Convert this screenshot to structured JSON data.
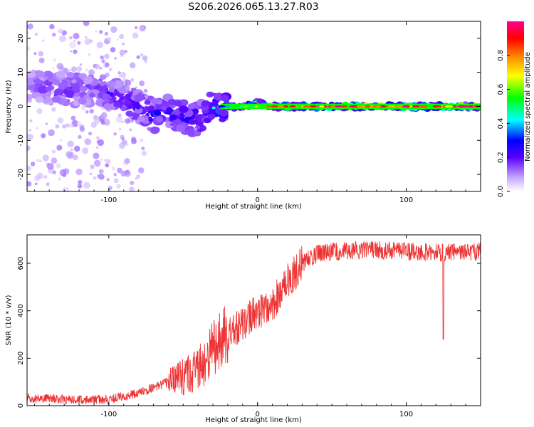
{
  "title": "S206.2026.065.13.27.R03",
  "chart_data": [
    {
      "type": "heatmap",
      "name": "spectrogram",
      "xlabel": "Height of straight line (km)",
      "ylabel": "Frequency (Hz)",
      "xlim": [
        -155,
        150
      ],
      "ylim": [
        -25,
        25
      ],
      "xticks": [
        -100,
        0,
        100
      ],
      "xtick_labels": [
        "-100",
        "0",
        "100"
      ],
      "yticks": [
        -20,
        -10,
        0,
        10,
        20
      ],
      "ytick_labels": [
        "-20",
        "-10",
        "0",
        "10",
        "20"
      ],
      "colorbar": {
        "label": "Normalized spectral amplitude",
        "range": [
          0,
          1
        ],
        "ticks": [
          0.0,
          0.2,
          0.4,
          0.6,
          0.8
        ],
        "tick_labels": [
          "0.0",
          "0.2",
          "0.4",
          "0.6",
          "0.8"
        ],
        "colors": [
          "#e8e0ff",
          "#5a00ff",
          "#0000ff",
          "#00ffff",
          "#00ff00",
          "#ffff00",
          "#ff8000",
          "#ff0000",
          "#ff0080"
        ]
      },
      "ridge": {
        "x": [
          -150,
          -130,
          -110,
          -95,
          -80,
          -70,
          -60,
          -50,
          -40,
          -30,
          -20,
          -10,
          0,
          10,
          20,
          50,
          100,
          150
        ],
        "freq": [
          6,
          5,
          5,
          3,
          0,
          -3,
          -1,
          -3,
          -4,
          0,
          0,
          0,
          1,
          0,
          0,
          0,
          0,
          0
        ],
        "amplitude": [
          0.15,
          0.25,
          0.2,
          0.3,
          0.3,
          0.35,
          0.35,
          0.35,
          0.4,
          0.45,
          0.5,
          0.55,
          0.7,
          0.85,
          0.9,
          0.95,
          0.95,
          0.95
        ]
      }
    },
    {
      "type": "line",
      "name": "snr",
      "xlabel": "Height of straight line (km)",
      "ylabel": "SNR (10 * v/v)",
      "xlim": [
        -155,
        150
      ],
      "ylim": [
        0,
        720
      ],
      "xticks": [
        -100,
        0,
        100
      ],
      "xtick_labels": [
        "-100",
        "0",
        "100"
      ],
      "yticks": [
        0,
        200,
        400,
        600
      ],
      "ytick_labels": [
        "0",
        "200",
        "400",
        "600"
      ],
      "color": "#ee3333",
      "envelope": {
        "x": [
          -155,
          -140,
          -120,
          -100,
          -90,
          -80,
          -70,
          -60,
          -50,
          -40,
          -30,
          -20,
          -10,
          0,
          10,
          20,
          30,
          40,
          60,
          80,
          100,
          120,
          150
        ],
        "y": [
          30,
          28,
          25,
          25,
          40,
          55,
          75,
          100,
          120,
          150,
          240,
          300,
          340,
          400,
          430,
          520,
          600,
          640,
          655,
          655,
          650,
          645,
          650
        ]
      },
      "spikes": [
        {
          "x": 125,
          "y": 280
        }
      ]
    }
  ]
}
